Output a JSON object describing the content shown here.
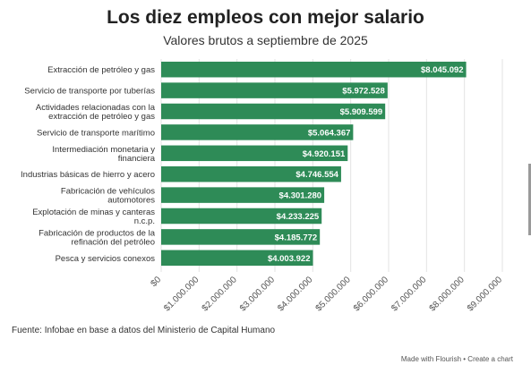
{
  "title": "Los diez empleos con mejor salario",
  "subtitle": "Valores brutos a septiembre de 2025",
  "source": "Fuente: Infobae en base a datos del Ministerio de Capital Humano",
  "footer": {
    "made_with": "Made with Flourish",
    "separator": "•",
    "create": "Create a chart"
  },
  "colors": {
    "bar": "#2e8b57",
    "label_text": "#ffffff",
    "grid": "#e3e3e3"
  },
  "chart_data": {
    "type": "bar",
    "orientation": "horizontal",
    "categories": [
      [
        "Extracción de petróleo y gas"
      ],
      [
        "Servicio de transporte por tuberías"
      ],
      [
        "Actividades relacionadas con la",
        "extracción de petróleo y gas"
      ],
      [
        "Servicio de transporte marítimo"
      ],
      [
        "Intermediación monetaria y",
        "financiera"
      ],
      [
        "Industrias básicas de hierro y acero"
      ],
      [
        "Fabricación de vehículos",
        "automotores"
      ],
      [
        "Explotación de minas y canteras",
        "n.c.p."
      ],
      [
        "Fabricación de productos de la",
        "refinación del petróleo"
      ],
      [
        "Pesca y servicios conexos"
      ]
    ],
    "values": [
      8045092,
      5972528,
      5909599,
      5064367,
      4920151,
      4746554,
      4301280,
      4233225,
      4185772,
      4003922
    ],
    "value_labels": [
      "$8.045.092",
      "$5.972.528",
      "$5.909.599",
      "$5.064.367",
      "$4.920.151",
      "$4.746.554",
      "$4.301.280",
      "$4.233.225",
      "$4.185.772",
      "$4.003.922"
    ],
    "xlim": [
      0,
      9000000
    ],
    "x_ticks": [
      0,
      1000000,
      2000000,
      3000000,
      4000000,
      5000000,
      6000000,
      7000000,
      8000000,
      9000000
    ],
    "x_tick_labels": [
      "$0",
      "$1.000.000",
      "$2.000.000",
      "$3.000.000",
      "$4.000.000",
      "$5.000.000",
      "$6.000.000",
      "$7.000.000",
      "$8.000.000",
      "$9.000.000"
    ],
    "grid": true,
    "xlabel": "",
    "ylabel": ""
  }
}
